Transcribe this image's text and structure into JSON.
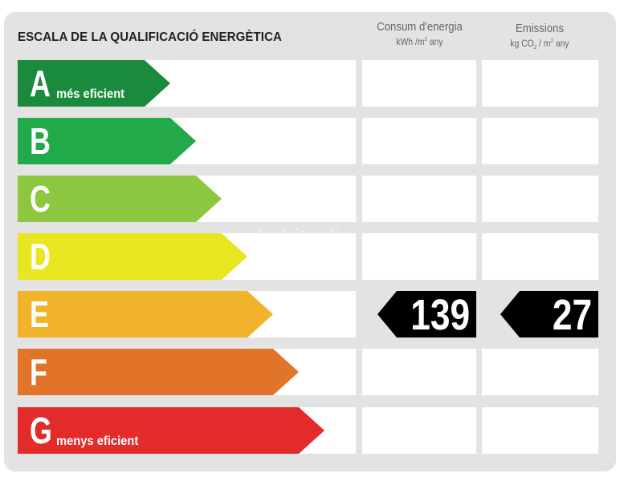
{
  "title": "ESCALA DE LA QUALIFICACIÓ ENERGÈTICA",
  "columns": {
    "consum": {
      "label": "Consum d'energia",
      "unit_prefix": "kWh /m",
      "unit_exp": "2",
      "unit_suffix": " any"
    },
    "emissions": {
      "label": "Emissions",
      "unit_prefix": "kg CO",
      "unit_sub": "2",
      "unit_mid": " / m",
      "unit_exp": "2",
      "unit_suffix": " any"
    }
  },
  "ratings": [
    {
      "letter": "A",
      "sublabel": "més eficient",
      "color": "#1a8a3c"
    },
    {
      "letter": "B",
      "sublabel": "",
      "color": "#21a94a"
    },
    {
      "letter": "C",
      "sublabel": "",
      "color": "#8dc63f"
    },
    {
      "letter": "D",
      "sublabel": "",
      "color": "#e8e620"
    },
    {
      "letter": "E",
      "sublabel": "",
      "color": "#f1b32a"
    },
    {
      "letter": "F",
      "sublabel": "",
      "color": "#e2742a"
    },
    {
      "letter": "G",
      "sublabel": "menys eficient",
      "color": "#e42b2b"
    }
  ],
  "current_rating": "E",
  "consum_value": "139",
  "emissions_value": "27",
  "watermark": "habitaclia"
}
